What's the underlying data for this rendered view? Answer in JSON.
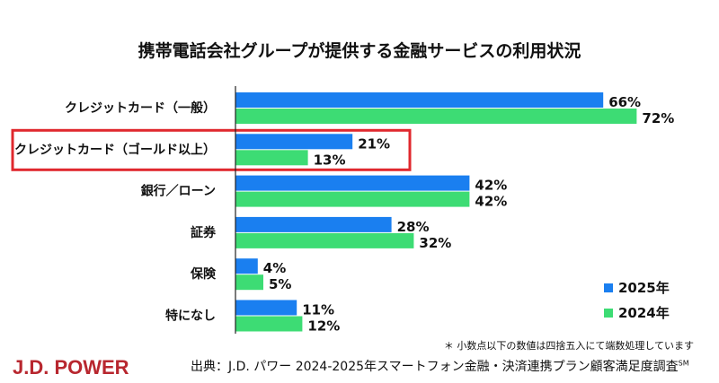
{
  "chart_data": {
    "type": "bar",
    "orientation": "horizontal",
    "title": "携帯電話会社グループが提供する金融サービスの利用状況",
    "categories": [
      "クレジットカード（一般）",
      "クレジットカード（ゴールド以上）",
      "銀行／ローン",
      "証券",
      "保険",
      "特になし"
    ],
    "series": [
      {
        "name": "2025年",
        "values": [
          66,
          21,
          42,
          28,
          4,
          11
        ],
        "color": "#1a7ff0"
      },
      {
        "name": "2024年",
        "values": [
          72,
          13,
          42,
          32,
          5,
          12
        ],
        "color": "#3ddc74"
      }
    ],
    "unit": "%",
    "xlim": [
      0,
      80
    ],
    "grid": false,
    "legend": "bottom-right",
    "highlighted_category": "クレジットカード（ゴールド以上）",
    "highlight_color": "#e0282e"
  },
  "footer": {
    "note": "＊ 小数点以下の数値は四捨五入にて端数処理しています",
    "source": "出典：J.D. パワー 2024-2025年スマートフォン金融・決済連携プラン顧客満足度調査",
    "source_mark": "SM",
    "logo": "J.D. POWER",
    "logo_color": "#b8272f"
  }
}
